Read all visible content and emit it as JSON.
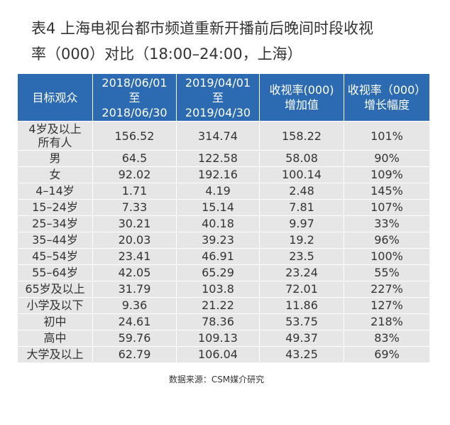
{
  "title": [
    "表4  上海电视台都市频道重新开播前后晚间时段收视",
    "率（000）对比（18:00–24:00，上海）"
  ],
  "table": {
    "header": [
      [
        "目标观众"
      ],
      [
        "2018/06/01",
        "至",
        "2018/06/30"
      ],
      [
        "2019/04/01",
        "至",
        "2019/04/30"
      ],
      [
        "收视率(000)",
        "增加值"
      ],
      [
        "收视率（000）",
        "增长幅度"
      ]
    ],
    "rows": [
      [
        [
          "4岁及以上",
          "所有人"
        ],
        "156.52",
        "314.74",
        "158.22",
        "101%"
      ],
      [
        [
          "男"
        ],
        "64.5",
        "122.58",
        "58.08",
        "90%"
      ],
      [
        [
          "女"
        ],
        "92.02",
        "192.16",
        "100.14",
        "109%"
      ],
      [
        [
          "4–14岁"
        ],
        "1.71",
        "4.19",
        "2.48",
        "145%"
      ],
      [
        [
          "15–24岁"
        ],
        "7.33",
        "15.14",
        "7.81",
        "107%"
      ],
      [
        [
          "25–34岁"
        ],
        "30.21",
        "40.18",
        "9.97",
        "33%"
      ],
      [
        [
          "35–44岁"
        ],
        "20.03",
        "39.23",
        "19.2",
        "96%"
      ],
      [
        [
          "45–54岁"
        ],
        "23.41",
        "46.91",
        "23.5",
        "100%"
      ],
      [
        [
          "55–64岁"
        ],
        "42.05",
        "65.29",
        "23.24",
        "55%"
      ],
      [
        [
          "65岁及以上"
        ],
        "31.79",
        "103.8",
        "72.01",
        "227%"
      ],
      [
        [
          "小学及以下"
        ],
        "9.36",
        "21.22",
        "11.86",
        "127%"
      ],
      [
        [
          "初中"
        ],
        "24.61",
        "78.36",
        "53.75",
        "218%"
      ],
      [
        [
          "高中"
        ],
        "59.76",
        "109.13",
        "49.37",
        "83%"
      ],
      [
        [
          "大学及以上"
        ],
        "62.79",
        "106.04",
        "43.25",
        "69%"
      ]
    ]
  },
  "source": "数据来源：CSM媒介研究"
}
